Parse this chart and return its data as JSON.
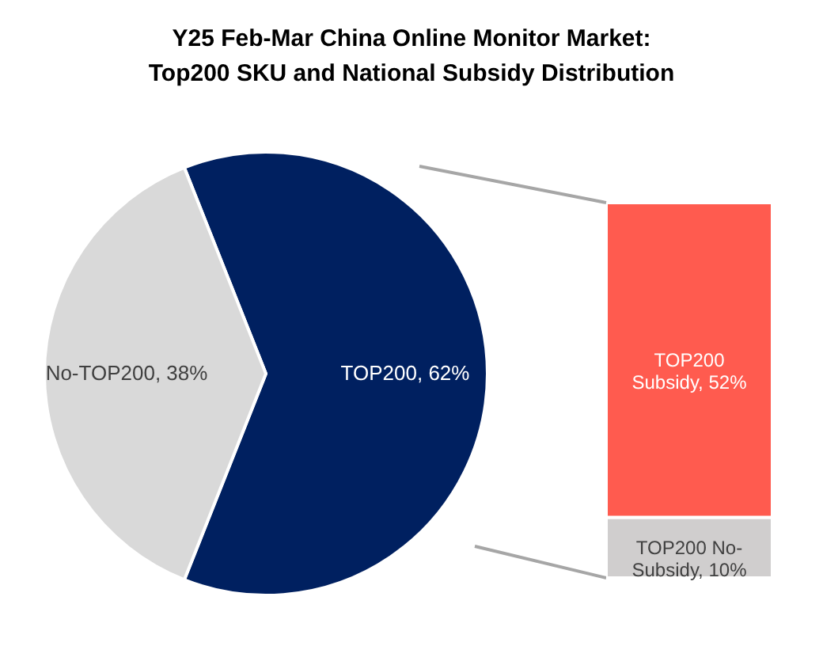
{
  "chart_data": [
    {
      "type": "pie",
      "title": "Y25 Feb-Mar China Online Monitor Market: Top200 SKU and National Subsidy Distribution",
      "categories": [
        "TOP200",
        "No-TOP200"
      ],
      "values": [
        62,
        38
      ],
      "value_labels": [
        "62%",
        "38%"
      ],
      "colors": [
        "#002060",
        "#d9d9d9"
      ]
    },
    {
      "type": "bar",
      "stacked": true,
      "categories": [
        null
      ],
      "series": [
        {
          "color": "#d0cece",
          "values": [
            10
          ],
          "value_labels": [
            "TOP200 No-Subsidy, 10%"
          ]
        },
        {
          "color": "#ff5b4f",
          "values": [
            52
          ],
          "value_labels": [
            "TOP200 Subsidy, 52%"
          ]
        }
      ]
    }
  ]
}
